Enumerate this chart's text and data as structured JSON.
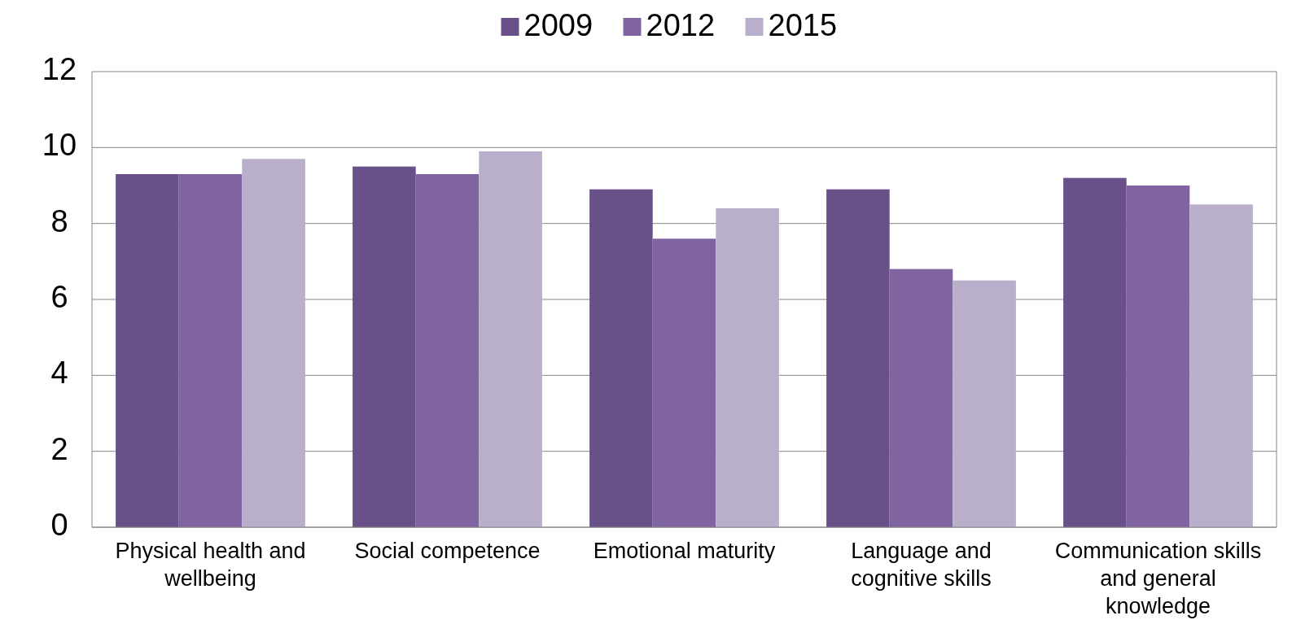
{
  "chart_data": {
    "type": "bar",
    "categories": [
      "Physical health and wellbeing",
      "Social competence",
      "Emotional maturity",
      "Language and cognitive skills",
      "Communication skills and general knowledge"
    ],
    "series": [
      {
        "name": "2009",
        "color": "#6a5089",
        "values": [
          9.3,
          9.5,
          8.9,
          8.9,
          9.2
        ]
      },
      {
        "name": "2012",
        "color": "#8064a2",
        "values": [
          9.3,
          9.3,
          7.6,
          6.8,
          9.0
        ]
      },
      {
        "name": "2015",
        "color": "#b9afcb",
        "values": [
          9.7,
          9.9,
          8.4,
          6.5,
          8.5
        ]
      }
    ],
    "ylim": [
      0,
      12
    ],
    "yticks": [
      0,
      2,
      4,
      6,
      8,
      10,
      12
    ],
    "grid": "y",
    "legend": "top"
  }
}
